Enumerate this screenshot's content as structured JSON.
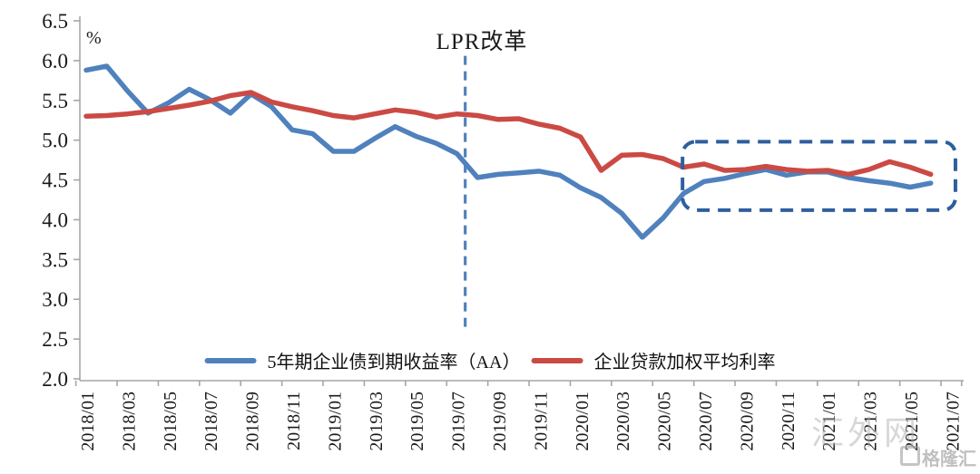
{
  "chart_data": {
    "type": "line",
    "title": "",
    "xlabel": "",
    "ylabel": "%",
    "ylim": [
      2.0,
      6.5
    ],
    "ytick_step": 0.5,
    "ytick_labels": [
      "2.0",
      "2.5",
      "3.0",
      "3.5",
      "4.0",
      "4.5",
      "5.0",
      "5.5",
      "6.0",
      "6.5"
    ],
    "grid": "off",
    "legend_position": "bottom-center",
    "x": [
      "2018/01",
      "2018/02",
      "2018/03",
      "2018/04",
      "2018/05",
      "2018/06",
      "2018/07",
      "2018/08",
      "2018/09",
      "2018/10",
      "2018/11",
      "2018/12",
      "2019/01",
      "2019/02",
      "2019/03",
      "2019/04",
      "2019/05",
      "2019/06",
      "2019/07",
      "2019/08",
      "2019/09",
      "2019/10",
      "2019/11",
      "2019/12",
      "2020/01",
      "2020/02",
      "2020/03",
      "2020/04",
      "2020/05",
      "2020/06",
      "2020/07",
      "2020/08",
      "2020/09",
      "2020/10",
      "2020/11",
      "2020/12",
      "2021/01",
      "2021/02",
      "2021/03",
      "2021/04",
      "2021/05",
      "2021/06"
    ],
    "x_axis_tick_labels": [
      "2018/01",
      "2018/03",
      "2018/05",
      "2018/07",
      "2018/09",
      "2018/11",
      "2019/01",
      "2019/03",
      "2019/05",
      "2019/07",
      "2019/09",
      "2019/11",
      "2020/01",
      "2020/03",
      "2020/05",
      "2020/07",
      "2020/09",
      "2020/11",
      "2021/01",
      "2021/03",
      "2021/05",
      "2021/07"
    ],
    "series": [
      {
        "name": "5年期企业债到期收益率（AA）",
        "color": "#4F81BD",
        "values": [
          5.88,
          5.93,
          5.62,
          5.34,
          5.47,
          5.64,
          5.51,
          5.34,
          5.58,
          5.42,
          5.13,
          5.08,
          4.86,
          4.86,
          5.02,
          5.17,
          5.05,
          4.96,
          4.83,
          4.53,
          4.57,
          4.59,
          4.61,
          4.56,
          4.4,
          4.28,
          4.08,
          3.78,
          4.02,
          4.33,
          4.48,
          4.52,
          4.58,
          4.63,
          4.56,
          4.6,
          4.6,
          4.53,
          4.49,
          4.46,
          4.41,
          4.46
        ]
      },
      {
        "name": "企业贷款加权平均利率",
        "color": "#CB4A44",
        "values": [
          5.3,
          5.31,
          5.33,
          5.36,
          5.4,
          5.44,
          5.49,
          5.56,
          5.6,
          5.48,
          5.42,
          5.37,
          5.31,
          5.28,
          5.33,
          5.38,
          5.35,
          5.29,
          5.33,
          5.31,
          5.26,
          5.27,
          5.2,
          5.15,
          5.04,
          4.62,
          4.81,
          4.82,
          4.77,
          4.66,
          4.7,
          4.62,
          4.63,
          4.67,
          4.63,
          4.61,
          4.62,
          4.57,
          4.63,
          4.73,
          4.66,
          4.57
        ]
      }
    ],
    "annotations": [
      {
        "type": "vline",
        "text": "LPR改革",
        "month_position": 18.4,
        "value_from": 2.59,
        "value_to": 6.06,
        "style": "dashed",
        "color": "#4F81BD"
      },
      {
        "type": "highlight-box",
        "month_from": 28.95,
        "month_to": 42.2,
        "value_from": 4.12,
        "value_to": 4.98,
        "style": "dashed-rounded",
        "color": "#2E5F9E"
      }
    ]
  },
  "watermark": {
    "site": "汇外网",
    "logo": "格隆汇"
  }
}
